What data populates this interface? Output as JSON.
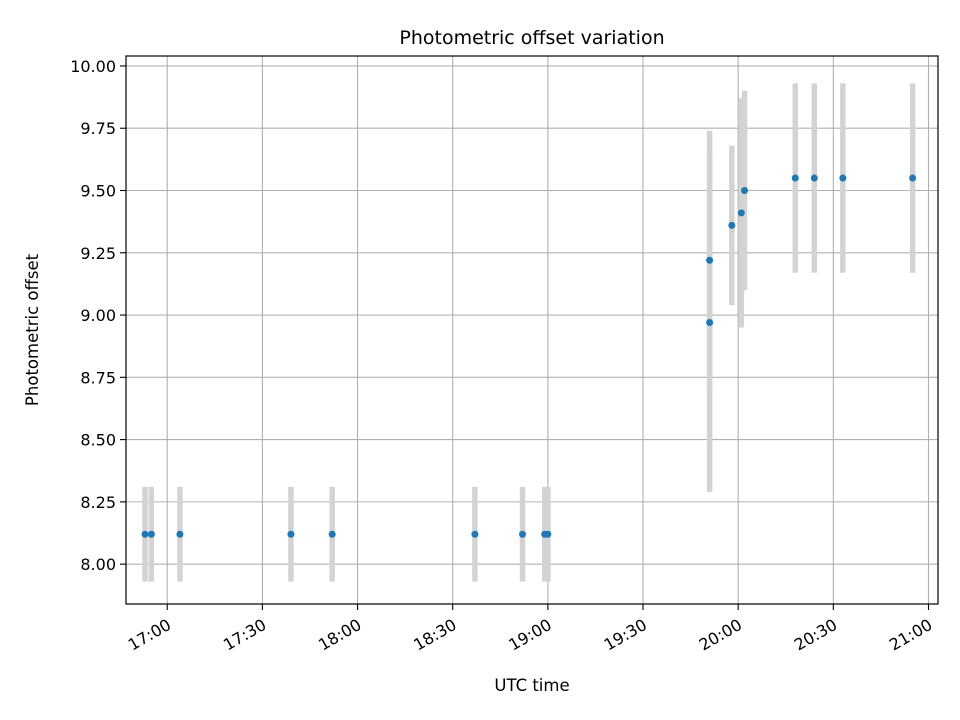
{
  "chart_data": {
    "type": "scatter",
    "title": "Photometric offset variation",
    "xlabel": "UTC time",
    "ylabel": "Photometric offset",
    "x_is_time": true,
    "xlim": [
      "16:47",
      "21:03"
    ],
    "ylim": [
      7.84,
      10.04
    ],
    "xticks": [
      "17:00",
      "17:30",
      "18:00",
      "18:30",
      "19:00",
      "19:30",
      "20:00",
      "20:30",
      "21:00"
    ],
    "yticks": [
      "8.00",
      "8.25",
      "8.50",
      "8.75",
      "9.00",
      "9.25",
      "9.50",
      "9.75",
      "10.00"
    ],
    "grid": true,
    "x_tick_rotation": 30,
    "marker_color": "#1f77b4",
    "errorbar_color": "#d3d3d3",
    "points": [
      {
        "time": "16:53",
        "y": 8.12,
        "err": 0.19
      },
      {
        "time": "16:55",
        "y": 8.12,
        "err": 0.19
      },
      {
        "time": "17:04",
        "y": 8.12,
        "err": 0.19
      },
      {
        "time": "17:39",
        "y": 8.12,
        "err": 0.19
      },
      {
        "time": "17:52",
        "y": 8.12,
        "err": 0.19
      },
      {
        "time": "18:37",
        "y": 8.12,
        "err": 0.19
      },
      {
        "time": "18:52",
        "y": 8.12,
        "err": 0.19
      },
      {
        "time": "18:59",
        "y": 8.12,
        "err": 0.19
      },
      {
        "time": "19:00",
        "y": 8.12,
        "err": 0.19
      },
      {
        "time": "19:51",
        "y": 8.97,
        "err": 0.68
      },
      {
        "time": "19:51",
        "y": 9.22,
        "err": 0.52
      },
      {
        "time": "19:58",
        "y": 9.36,
        "err": 0.32
      },
      {
        "time": "20:01",
        "y": 9.41,
        "err": 0.46
      },
      {
        "time": "20:02",
        "y": 9.5,
        "err": 0.4
      },
      {
        "time": "20:18",
        "y": 9.55,
        "err": 0.38
      },
      {
        "time": "20:24",
        "y": 9.55,
        "err": 0.38
      },
      {
        "time": "20:33",
        "y": 9.55,
        "err": 0.38
      },
      {
        "time": "20:55",
        "y": 9.55,
        "err": 0.38
      }
    ]
  }
}
